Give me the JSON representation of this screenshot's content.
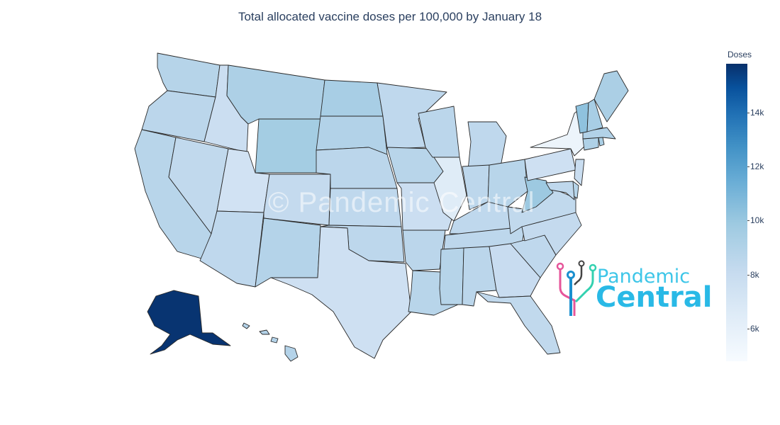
{
  "chart_data": {
    "type": "choropleth",
    "title": "Total allocated vaccine doses per 100,000 by January 18",
    "colorbar": {
      "title": "Doses",
      "range": [
        4800,
        15800
      ],
      "ticks": [
        {
          "value": 6000,
          "label": "6k"
        },
        {
          "value": 8000,
          "label": "8k"
        },
        {
          "value": 10000,
          "label": "10k"
        },
        {
          "value": 12000,
          "label": "12k"
        },
        {
          "value": 14000,
          "label": "14k"
        }
      ],
      "colorscale": "Blues"
    },
    "states": [
      {
        "code": "WA",
        "value": 8800
      },
      {
        "code": "OR",
        "value": 8600
      },
      {
        "code": "CA",
        "value": 8700
      },
      {
        "code": "ID",
        "value": 7800
      },
      {
        "code": "NV",
        "value": 8300
      },
      {
        "code": "UT",
        "value": 7400
      },
      {
        "code": "AZ",
        "value": 8400
      },
      {
        "code": "MT",
        "value": 9200
      },
      {
        "code": "WY",
        "value": 9600
      },
      {
        "code": "CO",
        "value": 8200
      },
      {
        "code": "NM",
        "value": 8900
      },
      {
        "code": "ND",
        "value": 9400
      },
      {
        "code": "SD",
        "value": 9000
      },
      {
        "code": "NE",
        "value": 8600
      },
      {
        "code": "KS",
        "value": 8400
      },
      {
        "code": "OK",
        "value": 8500
      },
      {
        "code": "TX",
        "value": 7600
      },
      {
        "code": "MN",
        "value": 8400
      },
      {
        "code": "IA",
        "value": 8700
      },
      {
        "code": "MO",
        "value": 7800
      },
      {
        "code": "AR",
        "value": 8600
      },
      {
        "code": "LA",
        "value": 8700
      },
      {
        "code": "WI",
        "value": 8600
      },
      {
        "code": "IL",
        "value": 6500
      },
      {
        "code": "MI",
        "value": 8400
      },
      {
        "code": "IN",
        "value": 8500
      },
      {
        "code": "OH",
        "value": 8700
      },
      {
        "code": "KY",
        "value": 8400
      },
      {
        "code": "TN",
        "value": 8500
      },
      {
        "code": "MS",
        "value": 8800
      },
      {
        "code": "AL",
        "value": 8600
      },
      {
        "code": "GA",
        "value": 8000
      },
      {
        "code": "FL",
        "value": 8300
      },
      {
        "code": "SC",
        "value": 8400
      },
      {
        "code": "NC",
        "value": 8200
      },
      {
        "code": "VA",
        "value": 8300
      },
      {
        "code": "WV",
        "value": 9900
      },
      {
        "code": "PA",
        "value": 7600
      },
      {
        "code": "NY",
        "value": 5600
      },
      {
        "code": "NJ",
        "value": 7900
      },
      {
        "code": "DE",
        "value": 8800
      },
      {
        "code": "MD",
        "value": 8400
      },
      {
        "code": "CT",
        "value": 9100
      },
      {
        "code": "RI",
        "value": 9300
      },
      {
        "code": "MA",
        "value": 9000
      },
      {
        "code": "VT",
        "value": 10300
      },
      {
        "code": "NH",
        "value": 9400
      },
      {
        "code": "ME",
        "value": 9300
      },
      {
        "code": "AK",
        "value": 15700
      },
      {
        "code": "HI",
        "value": 8900
      }
    ]
  },
  "watermark": "© Pandemic Central",
  "logo": {
    "line1": "Pandemic",
    "line2": "Central"
  }
}
